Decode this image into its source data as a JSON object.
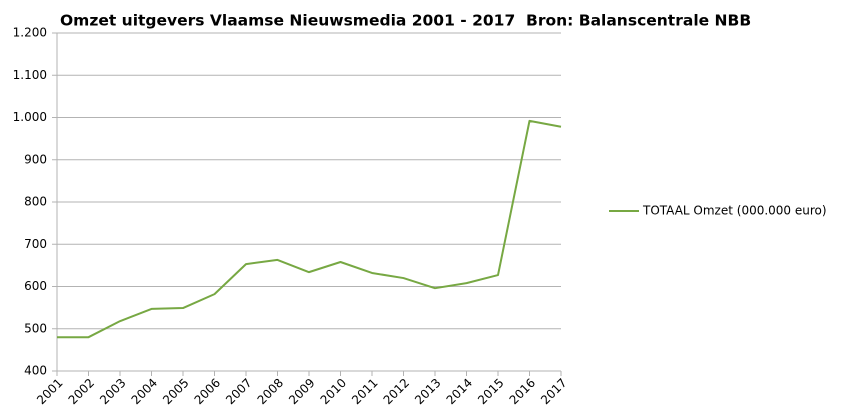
{
  "chart_data": {
    "type": "line",
    "title": "Omzet uitgevers Vlaamse Nieuwsmedia 2001 - 2017  Bron: Balanscentrale NBB",
    "categories": [
      "2001",
      "2002",
      "2003",
      "2004",
      "2005",
      "2006",
      "2007",
      "2008",
      "2009",
      "2010",
      "2011",
      "2012",
      "2013",
      "2014",
      "2015",
      "2016",
      "2017"
    ],
    "series": [
      {
        "name": "TOTAAL Omzet (000.000 euro)",
        "color": "#77a843",
        "values": [
          480,
          480,
          518,
          547,
          549,
          582,
          653,
          663,
          634,
          658,
          632,
          620,
          596,
          608,
          627,
          992,
          978
        ]
      }
    ],
    "ylim": [
      400,
      1200
    ],
    "yticks": [
      400,
      500,
      600,
      700,
      800,
      900,
      {
        "value": 1000,
        "label": "1.000"
      },
      {
        "value": 1100,
        "label": "1.100"
      },
      {
        "value": 1200,
        "label": "1.200"
      }
    ],
    "grid": true,
    "legend": "right"
  }
}
